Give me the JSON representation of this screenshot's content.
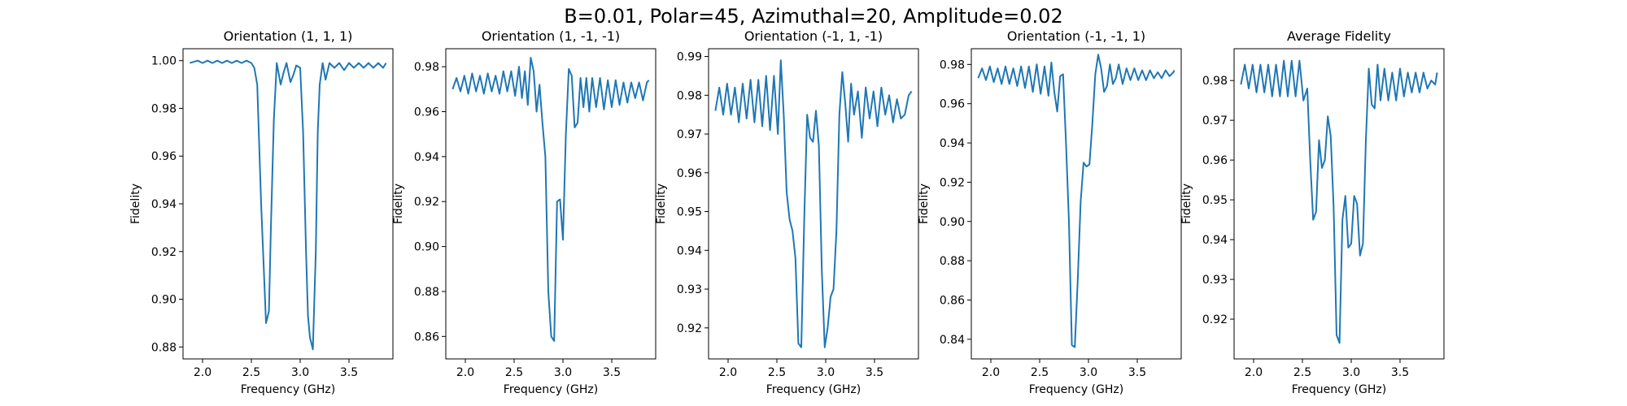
{
  "figure": {
    "suptitle": "B=0.01, Polar=45, Azimuthal=20, Amplitude=0.02"
  },
  "chart_data": [
    {
      "type": "line",
      "title": "Orientation (1, 1, 1)",
      "xlabel": "Frequency (GHz)",
      "ylabel": "Fidelity",
      "xlim": [
        1.8,
        3.95
      ],
      "ylim": [
        0.875,
        1.005
      ],
      "xticks": [
        2.0,
        2.5,
        3.0,
        3.5
      ],
      "xtick_labels": [
        "2.0",
        "2.5",
        "3.0",
        "3.5"
      ],
      "yticks": [
        0.88,
        0.9,
        0.92,
        0.94,
        0.96,
        0.98,
        1.0
      ],
      "ytick_labels": [
        "0.88",
        "0.90",
        "0.92",
        "0.94",
        "0.96",
        "0.98",
        "1.00"
      ],
      "color": "#1f77b4",
      "x": [
        1.87,
        1.95,
        2.0,
        2.05,
        2.1,
        2.15,
        2.2,
        2.25,
        2.3,
        2.35,
        2.4,
        2.45,
        2.5,
        2.53,
        2.56,
        2.6,
        2.65,
        2.68,
        2.7,
        2.73,
        2.76,
        2.8,
        2.83,
        2.86,
        2.9,
        2.93,
        2.96,
        3.0,
        3.03,
        3.06,
        3.08,
        3.1,
        3.13,
        3.16,
        3.18,
        3.2,
        3.23,
        3.26,
        3.3,
        3.35,
        3.4,
        3.45,
        3.5,
        3.55,
        3.6,
        3.65,
        3.7,
        3.75,
        3.8,
        3.85,
        3.88
      ],
      "y": [
        0.999,
        1.0,
        0.999,
        1.0,
        0.999,
        1.0,
        0.999,
        1.0,
        0.999,
        1.0,
        0.999,
        1.0,
        0.999,
        0.997,
        0.99,
        0.94,
        0.89,
        0.895,
        0.93,
        0.975,
        0.999,
        0.99,
        0.995,
        0.999,
        0.991,
        0.994,
        0.998,
        0.997,
        0.97,
        0.92,
        0.893,
        0.884,
        0.879,
        0.92,
        0.97,
        0.99,
        0.999,
        0.992,
        0.999,
        0.997,
        0.999,
        0.996,
        0.999,
        0.997,
        0.999,
        0.997,
        0.999,
        0.997,
        0.999,
        0.997,
        0.999
      ]
    },
    {
      "type": "line",
      "title": "Orientation (1, -1, -1)",
      "xlabel": "Frequency (GHz)",
      "ylabel": "Fidelity",
      "xlim": [
        1.8,
        3.95
      ],
      "ylim": [
        0.85,
        0.988
      ],
      "xticks": [
        2.0,
        2.5,
        3.0,
        3.5
      ],
      "xtick_labels": [
        "2.0",
        "2.5",
        "3.0",
        "3.5"
      ],
      "yticks": [
        0.86,
        0.88,
        0.9,
        0.92,
        0.94,
        0.96,
        0.98
      ],
      "ytick_labels": [
        "0.86",
        "0.88",
        "0.90",
        "0.92",
        "0.94",
        "0.96",
        "0.98"
      ],
      "color": "#1f77b4",
      "x": [
        1.87,
        1.91,
        1.95,
        1.99,
        2.03,
        2.07,
        2.11,
        2.15,
        2.19,
        2.23,
        2.27,
        2.31,
        2.35,
        2.39,
        2.43,
        2.47,
        2.51,
        2.55,
        2.58,
        2.61,
        2.64,
        2.67,
        2.7,
        2.73,
        2.76,
        2.79,
        2.82,
        2.85,
        2.88,
        2.91,
        2.94,
        2.97,
        3.0,
        3.03,
        3.06,
        3.09,
        3.12,
        3.15,
        3.18,
        3.21,
        3.24,
        3.27,
        3.3,
        3.34,
        3.38,
        3.42,
        3.46,
        3.5,
        3.54,
        3.58,
        3.62,
        3.66,
        3.7,
        3.74,
        3.78,
        3.82,
        3.86,
        3.88
      ],
      "y": [
        0.97,
        0.975,
        0.969,
        0.976,
        0.968,
        0.977,
        0.969,
        0.976,
        0.968,
        0.977,
        0.969,
        0.976,
        0.968,
        0.978,
        0.969,
        0.978,
        0.967,
        0.98,
        0.966,
        0.978,
        0.963,
        0.984,
        0.978,
        0.96,
        0.972,
        0.955,
        0.94,
        0.88,
        0.86,
        0.858,
        0.92,
        0.921,
        0.903,
        0.95,
        0.979,
        0.976,
        0.953,
        0.955,
        0.975,
        0.962,
        0.975,
        0.96,
        0.975,
        0.962,
        0.975,
        0.961,
        0.974,
        0.962,
        0.974,
        0.963,
        0.973,
        0.964,
        0.973,
        0.966,
        0.973,
        0.965,
        0.973,
        0.974
      ]
    },
    {
      "type": "line",
      "title": "Orientation (-1, 1, -1)",
      "xlabel": "Frequency (GHz)",
      "ylabel": "Fidelity",
      "xlim": [
        1.8,
        3.95
      ],
      "ylim": [
        0.912,
        0.992
      ],
      "xticks": [
        2.0,
        2.5,
        3.0,
        3.5
      ],
      "xtick_labels": [
        "2.0",
        "2.5",
        "3.0",
        "3.5"
      ],
      "yticks": [
        0.92,
        0.93,
        0.94,
        0.95,
        0.96,
        0.97,
        0.98,
        0.99
      ],
      "ytick_labels": [
        "0.92",
        "0.93",
        "0.94",
        "0.95",
        "0.96",
        "0.97",
        "0.98",
        "0.99"
      ],
      "color": "#1f77b4",
      "x": [
        1.87,
        1.91,
        1.95,
        1.99,
        2.03,
        2.07,
        2.11,
        2.15,
        2.19,
        2.23,
        2.27,
        2.31,
        2.35,
        2.39,
        2.43,
        2.47,
        2.51,
        2.54,
        2.57,
        2.6,
        2.63,
        2.66,
        2.69,
        2.72,
        2.75,
        2.78,
        2.81,
        2.84,
        2.87,
        2.9,
        2.93,
        2.96,
        2.99,
        3.02,
        3.05,
        3.08,
        3.11,
        3.14,
        3.17,
        3.2,
        3.23,
        3.26,
        3.29,
        3.33,
        3.37,
        3.41,
        3.45,
        3.49,
        3.53,
        3.57,
        3.61,
        3.65,
        3.69,
        3.73,
        3.77,
        3.81,
        3.85,
        3.88
      ],
      "y": [
        0.976,
        0.982,
        0.975,
        0.983,
        0.975,
        0.982,
        0.973,
        0.983,
        0.974,
        0.984,
        0.973,
        0.984,
        0.972,
        0.985,
        0.971,
        0.985,
        0.97,
        0.989,
        0.975,
        0.955,
        0.948,
        0.945,
        0.938,
        0.916,
        0.915,
        0.948,
        0.975,
        0.969,
        0.968,
        0.976,
        0.967,
        0.935,
        0.915,
        0.92,
        0.928,
        0.93,
        0.945,
        0.975,
        0.986,
        0.978,
        0.968,
        0.983,
        0.975,
        0.981,
        0.969,
        0.982,
        0.974,
        0.981,
        0.972,
        0.982,
        0.975,
        0.98,
        0.973,
        0.979,
        0.974,
        0.975,
        0.98,
        0.981
      ]
    },
    {
      "type": "line",
      "title": "Orientation (-1, -1, 1)",
      "xlabel": "Frequency (GHz)",
      "ylabel": "Fidelity",
      "xlim": [
        1.8,
        3.95
      ],
      "ylim": [
        0.83,
        0.988
      ],
      "xticks": [
        2.0,
        2.5,
        3.0,
        3.5
      ],
      "xtick_labels": [
        "2.0",
        "2.5",
        "3.0",
        "3.5"
      ],
      "yticks": [
        0.84,
        0.86,
        0.88,
        0.9,
        0.92,
        0.94,
        0.96,
        0.98
      ],
      "ytick_labels": [
        "0.84",
        "0.86",
        "0.88",
        "0.90",
        "0.92",
        "0.94",
        "0.96",
        "0.98"
      ],
      "color": "#1f77b4",
      "x": [
        1.87,
        1.91,
        1.95,
        1.99,
        2.03,
        2.07,
        2.11,
        2.15,
        2.19,
        2.23,
        2.27,
        2.31,
        2.35,
        2.39,
        2.43,
        2.47,
        2.51,
        2.55,
        2.59,
        2.62,
        2.65,
        2.68,
        2.71,
        2.74,
        2.77,
        2.8,
        2.83,
        2.86,
        2.89,
        2.92,
        2.95,
        2.98,
        3.01,
        3.04,
        3.07,
        3.1,
        3.13,
        3.16,
        3.19,
        3.22,
        3.25,
        3.28,
        3.31,
        3.35,
        3.39,
        3.43,
        3.47,
        3.51,
        3.55,
        3.59,
        3.63,
        3.67,
        3.71,
        3.75,
        3.79,
        3.83,
        3.87,
        3.88
      ],
      "y": [
        0.973,
        0.978,
        0.972,
        0.979,
        0.971,
        0.978,
        0.97,
        0.979,
        0.97,
        0.978,
        0.969,
        0.979,
        0.968,
        0.979,
        0.966,
        0.98,
        0.965,
        0.979,
        0.964,
        0.981,
        0.966,
        0.956,
        0.974,
        0.975,
        0.94,
        0.9,
        0.837,
        0.836,
        0.87,
        0.91,
        0.93,
        0.928,
        0.929,
        0.95,
        0.975,
        0.985,
        0.978,
        0.966,
        0.969,
        0.98,
        0.97,
        0.973,
        0.98,
        0.97,
        0.978,
        0.972,
        0.978,
        0.972,
        0.977,
        0.972,
        0.977,
        0.973,
        0.976,
        0.973,
        0.977,
        0.974,
        0.976,
        0.977
      ]
    },
    {
      "type": "line",
      "title": "Average Fidelity",
      "xlabel": "Frequency (GHz)",
      "ylabel": "Fidelity",
      "xlim": [
        1.8,
        3.95
      ],
      "ylim": [
        0.91,
        0.988
      ],
      "xticks": [
        2.0,
        2.5,
        3.0,
        3.5
      ],
      "xtick_labels": [
        "2.0",
        "2.5",
        "3.0",
        "3.5"
      ],
      "yticks": [
        0.92,
        0.93,
        0.94,
        0.95,
        0.96,
        0.97,
        0.98
      ],
      "ytick_labels": [
        "0.92",
        "0.93",
        "0.94",
        "0.95",
        "0.96",
        "0.97",
        "0.98"
      ],
      "color": "#1f77b4",
      "x": [
        1.87,
        1.91,
        1.95,
        1.99,
        2.03,
        2.07,
        2.11,
        2.15,
        2.19,
        2.23,
        2.27,
        2.31,
        2.35,
        2.39,
        2.43,
        2.47,
        2.51,
        2.55,
        2.58,
        2.61,
        2.64,
        2.67,
        2.7,
        2.73,
        2.76,
        2.79,
        2.82,
        2.85,
        2.88,
        2.91,
        2.94,
        2.97,
        3.0,
        3.03,
        3.06,
        3.09,
        3.12,
        3.15,
        3.18,
        3.21,
        3.24,
        3.27,
        3.3,
        3.34,
        3.38,
        3.42,
        3.46,
        3.5,
        3.54,
        3.58,
        3.62,
        3.66,
        3.7,
        3.74,
        3.78,
        3.82,
        3.86,
        3.88
      ],
      "y": [
        0.979,
        0.984,
        0.978,
        0.984,
        0.977,
        0.984,
        0.977,
        0.984,
        0.976,
        0.984,
        0.976,
        0.985,
        0.976,
        0.985,
        0.976,
        0.985,
        0.975,
        0.978,
        0.96,
        0.945,
        0.947,
        0.965,
        0.958,
        0.96,
        0.971,
        0.966,
        0.948,
        0.916,
        0.914,
        0.945,
        0.951,
        0.938,
        0.939,
        0.951,
        0.949,
        0.936,
        0.939,
        0.965,
        0.983,
        0.974,
        0.973,
        0.984,
        0.975,
        0.983,
        0.975,
        0.982,
        0.975,
        0.983,
        0.976,
        0.982,
        0.977,
        0.982,
        0.977,
        0.982,
        0.978,
        0.98,
        0.979,
        0.982
      ]
    }
  ]
}
